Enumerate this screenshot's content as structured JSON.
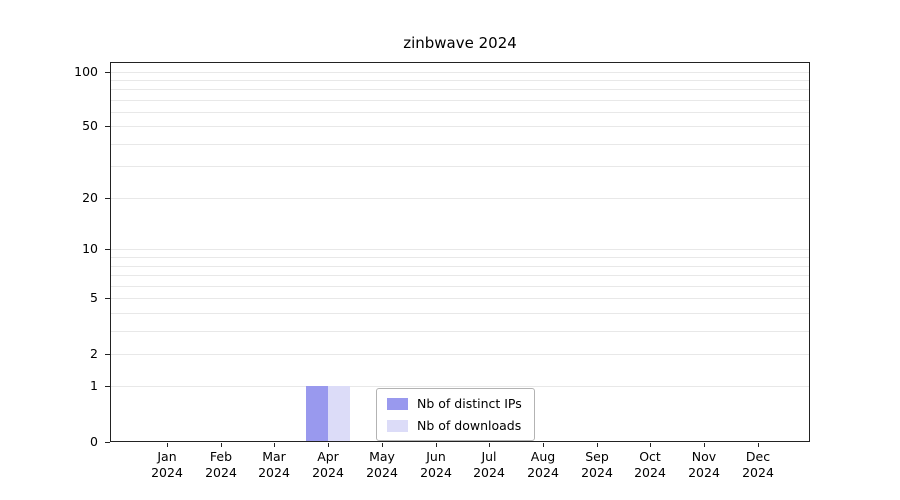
{
  "chart_data": {
    "type": "bar",
    "title": "zinbwave 2024",
    "categories": [
      "Jan",
      "Feb",
      "Mar",
      "Apr",
      "May",
      "Jun",
      "Jul",
      "Aug",
      "Sep",
      "Oct",
      "Nov",
      "Dec"
    ],
    "x_year_label": "2024",
    "series": [
      {
        "name": "Nb of distinct IPs",
        "color": "#9999ee",
        "values": [
          0,
          0,
          0,
          1,
          0,
          0,
          0,
          0,
          0,
          0,
          0,
          0
        ]
      },
      {
        "name": "Nb of downloads",
        "color": "#dcdcf8",
        "values": [
          0,
          0,
          0,
          1,
          0,
          0,
          0,
          0,
          0,
          0,
          0,
          0
        ]
      }
    ],
    "y_ticks": [
      0,
      1,
      2,
      5,
      10,
      20,
      50,
      100
    ],
    "y_scale": "log1p",
    "ylim": [
      0,
      100
    ],
    "grid": {
      "show": true,
      "axis": "y",
      "minor_lines": [
        1,
        2,
        3,
        4,
        5,
        6,
        7,
        8,
        9,
        10,
        20,
        30,
        40,
        50,
        60,
        70,
        80,
        90,
        100
      ],
      "color": "#e8e8e8"
    },
    "legend": {
      "position": "bottom-center",
      "entries": [
        "Nb of distinct IPs",
        "Nb of downloads"
      ]
    }
  }
}
